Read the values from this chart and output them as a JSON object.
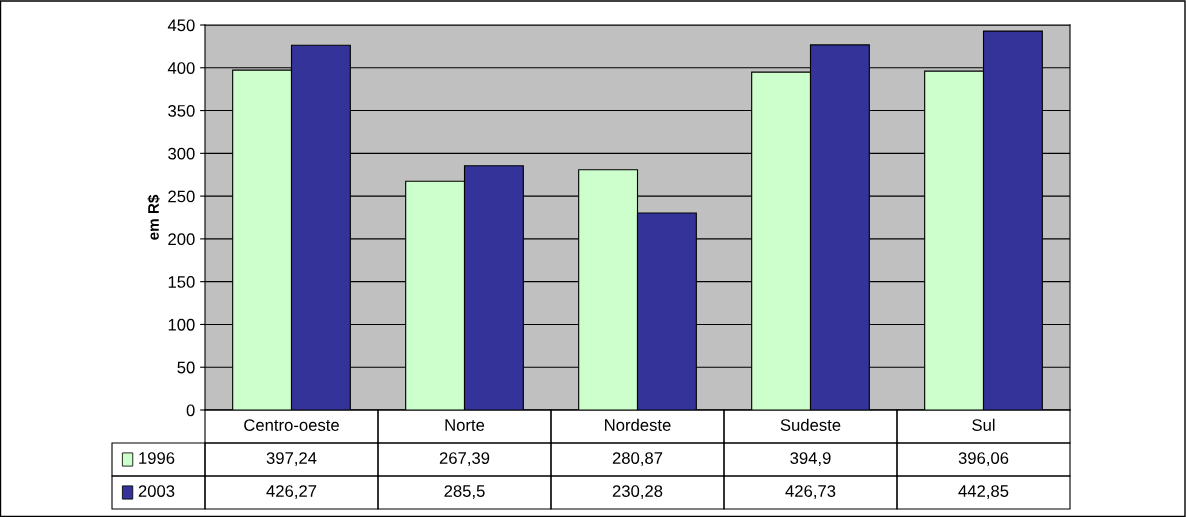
{
  "chart_data": {
    "type": "bar",
    "ylabel": "em R$",
    "categories": [
      "Centro-oeste",
      "Norte",
      "Nordeste",
      "Sudeste",
      "Sul"
    ],
    "series": [
      {
        "name": "1996",
        "color": "#ccffcc",
        "values": [
          397.24,
          267.39,
          280.87,
          394.9,
          396.06
        ],
        "value_labels": [
          "397,24",
          "267,39",
          "280,87",
          "394,9",
          "396,06"
        ]
      },
      {
        "name": "2003",
        "color": "#333399",
        "values": [
          426.27,
          285.5,
          230.28,
          426.73,
          442.85
        ],
        "value_labels": [
          "426,27",
          "285,5",
          "230,28",
          "426,73",
          "442,85"
        ]
      }
    ],
    "ylim": [
      0,
      450
    ],
    "yticks": [
      0,
      50,
      100,
      150,
      200,
      250,
      300,
      350,
      400,
      450
    ],
    "grid": "y",
    "legend": "bottom"
  }
}
